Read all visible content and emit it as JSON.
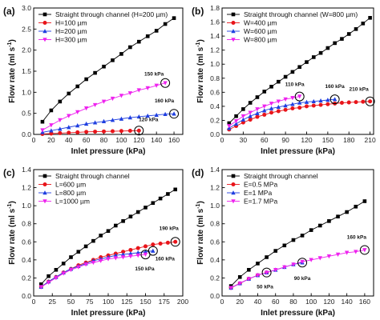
{
  "chart_data": [
    {
      "type": "line",
      "panel_label": "(a)",
      "xlabel": "Inlet pressure (kPa)",
      "ylabel": "Flow rate (ml s",
      "ylabel_sup": "-1",
      "ylabel_end": ")",
      "xlim": [
        0,
        170
      ],
      "ylim": [
        0,
        3.0
      ],
      "xticks": [
        0,
        20,
        40,
        60,
        80,
        100,
        120,
        140,
        160
      ],
      "yticks": [
        0.0,
        0.5,
        1.0,
        1.5,
        2.0,
        2.5,
        3.0
      ],
      "ytick_decimals": 1,
      "legend_position": "top-left",
      "series": [
        {
          "name": "Straight through channel (H=200 µm)",
          "color": "#000000",
          "marker": "square",
          "x": [
            10,
            20,
            30,
            40,
            50,
            60,
            70,
            80,
            90,
            100,
            110,
            120,
            130,
            140,
            150,
            160
          ],
          "y": [
            0.3,
            0.57,
            0.78,
            0.97,
            1.14,
            1.31,
            1.46,
            1.61,
            1.76,
            1.91,
            2.07,
            2.2,
            2.33,
            2.46,
            2.62,
            2.76
          ]
        },
        {
          "name": "H=100 µm",
          "color": "#e8141a",
          "marker": "circle",
          "x": [
            10,
            20,
            30,
            40,
            50,
            60,
            70,
            80,
            90,
            100,
            110,
            120
          ],
          "y": [
            0.01,
            0.02,
            0.03,
            0.04,
            0.05,
            0.06,
            0.065,
            0.07,
            0.075,
            0.08,
            0.085,
            0.09
          ]
        },
        {
          "name": "H=200 µm",
          "color": "#1f3fe0",
          "marker": "triangle-up",
          "x": [
            10,
            20,
            30,
            40,
            50,
            60,
            70,
            80,
            90,
            100,
            110,
            120,
            130,
            140,
            150,
            160
          ],
          "y": [
            0.05,
            0.09,
            0.13,
            0.17,
            0.21,
            0.25,
            0.28,
            0.31,
            0.34,
            0.37,
            0.4,
            0.42,
            0.44,
            0.46,
            0.48,
            0.49
          ]
        },
        {
          "name": "H=300 µm",
          "color": "#ee22ee",
          "marker": "triangle-down",
          "x": [
            10,
            20,
            30,
            40,
            50,
            60,
            70,
            80,
            90,
            100,
            110,
            120,
            130,
            140,
            150
          ],
          "y": [
            0.1,
            0.22,
            0.34,
            0.44,
            0.53,
            0.62,
            0.7,
            0.78,
            0.85,
            0.92,
            0.98,
            1.05,
            1.1,
            1.16,
            1.22
          ]
        }
      ],
      "annotations": [
        {
          "text": "150 kPa",
          "x": 150,
          "y": 1.22,
          "dx": -14,
          "dy": -9
        },
        {
          "text": "160 kPa",
          "x": 160,
          "y": 0.49,
          "dx": -12,
          "dy": -14
        },
        {
          "text": "120 kPa",
          "x": 120,
          "y": 0.09,
          "dx": 12,
          "dy": -12
        }
      ]
    },
    {
      "type": "line",
      "panel_label": "(b)",
      "xlabel": "Inlet pressure (kPa)",
      "ylabel": "Flow rate (ml s",
      "ylabel_sup": "-1",
      "ylabel_end": ")",
      "xlim": [
        0,
        215
      ],
      "ylim": [
        0,
        1.8
      ],
      "xticks": [
        0,
        30,
        60,
        90,
        120,
        150,
        180,
        210
      ],
      "yticks": [
        0.0,
        0.2,
        0.4,
        0.6,
        0.8,
        1.0,
        1.2,
        1.4,
        1.6,
        1.8
      ],
      "ytick_decimals": 1,
      "legend_position": "top-left",
      "series": [
        {
          "name": "Straight through channel (W=800 µm)",
          "color": "#000000",
          "marker": "square",
          "x": [
            10,
            20,
            30,
            40,
            50,
            60,
            70,
            80,
            90,
            100,
            110,
            120,
            130,
            140,
            150,
            160,
            170,
            180,
            190,
            200,
            210
          ],
          "y": [
            0.16,
            0.26,
            0.36,
            0.45,
            0.53,
            0.61,
            0.68,
            0.75,
            0.82,
            0.89,
            0.96,
            1.03,
            1.1,
            1.16,
            1.23,
            1.3,
            1.36,
            1.43,
            1.5,
            1.58,
            1.66
          ]
        },
        {
          "name": "W=400 µm",
          "color": "#e8141a",
          "marker": "circle",
          "x": [
            10,
            20,
            30,
            40,
            50,
            60,
            70,
            80,
            90,
            100,
            110,
            120,
            130,
            140,
            150,
            160,
            170,
            180,
            190,
            200,
            210
          ],
          "y": [
            0.07,
            0.12,
            0.17,
            0.21,
            0.25,
            0.28,
            0.31,
            0.33,
            0.35,
            0.37,
            0.38,
            0.4,
            0.41,
            0.42,
            0.43,
            0.44,
            0.45,
            0.455,
            0.46,
            0.465,
            0.47
          ]
        },
        {
          "name": "W=600 µm",
          "color": "#1f3fe0",
          "marker": "triangle-up",
          "x": [
            10,
            20,
            30,
            40,
            50,
            60,
            70,
            80,
            90,
            100,
            110,
            120,
            130,
            140,
            150,
            160
          ],
          "y": [
            0.09,
            0.15,
            0.21,
            0.26,
            0.3,
            0.34,
            0.37,
            0.39,
            0.41,
            0.43,
            0.45,
            0.46,
            0.47,
            0.48,
            0.49,
            0.5
          ]
        },
        {
          "name": "W=800 µm",
          "color": "#ee22ee",
          "marker": "triangle-down",
          "x": [
            10,
            20,
            30,
            40,
            50,
            60,
            70,
            80,
            90,
            100,
            110
          ],
          "y": [
            0.12,
            0.19,
            0.26,
            0.31,
            0.36,
            0.4,
            0.44,
            0.47,
            0.5,
            0.52,
            0.54
          ]
        }
      ],
      "annotations": [
        {
          "text": "110 kPa",
          "x": 110,
          "y": 0.54,
          "dx": -6,
          "dy": -13
        },
        {
          "text": "160 kPa",
          "x": 160,
          "y": 0.5,
          "dx": 0,
          "dy": -14
        },
        {
          "text": "210 kPa",
          "x": 210,
          "y": 0.47,
          "dx": -14,
          "dy": -13
        }
      ]
    },
    {
      "type": "line",
      "panel_label": "(c)",
      "xlabel": "Inlet pressure (kPa)",
      "ylabel": "Flow rate (ml s",
      "ylabel_sup": "-1",
      "ylabel_end": ")",
      "xlim": [
        0,
        200
      ],
      "ylim": [
        0,
        1.4
      ],
      "xticks": [
        0,
        25,
        50,
        75,
        100,
        125,
        150,
        175,
        200
      ],
      "yticks": [
        0.0,
        0.2,
        0.4,
        0.6,
        0.8,
        1.0,
        1.2,
        1.4
      ],
      "ytick_decimals": 1,
      "legend_position": "top-left",
      "series": [
        {
          "name": "Straight through channel",
          "color": "#000000",
          "marker": "square",
          "x": [
            10,
            20,
            30,
            40,
            50,
            60,
            70,
            80,
            90,
            100,
            110,
            120,
            130,
            140,
            150,
            160,
            170,
            180,
            190
          ],
          "y": [
            0.13,
            0.22,
            0.29,
            0.36,
            0.43,
            0.49,
            0.55,
            0.61,
            0.67,
            0.72,
            0.78,
            0.83,
            0.88,
            0.93,
            0.98,
            1.03,
            1.08,
            1.13,
            1.18
          ]
        },
        {
          "name": "L=600 µm",
          "color": "#e8141a",
          "marker": "circle",
          "x": [
            10,
            20,
            30,
            40,
            50,
            60,
            70,
            80,
            90,
            100,
            110,
            120,
            130,
            140,
            150,
            160,
            170,
            180,
            190
          ],
          "y": [
            0.1,
            0.16,
            0.21,
            0.26,
            0.3,
            0.34,
            0.37,
            0.4,
            0.43,
            0.45,
            0.47,
            0.49,
            0.51,
            0.53,
            0.55,
            0.57,
            0.58,
            0.59,
            0.6
          ]
        },
        {
          "name": "L=800 µm",
          "color": "#1f3fe0",
          "marker": "triangle-up",
          "x": [
            10,
            20,
            30,
            40,
            50,
            60,
            70,
            80,
            90,
            100,
            110,
            120,
            130,
            140,
            150,
            160
          ],
          "y": [
            0.1,
            0.16,
            0.21,
            0.26,
            0.3,
            0.33,
            0.36,
            0.39,
            0.41,
            0.43,
            0.45,
            0.46,
            0.47,
            0.48,
            0.49,
            0.5
          ]
        },
        {
          "name": "L=1000 µm",
          "color": "#ee22ee",
          "marker": "triangle-down",
          "x": [
            10,
            20,
            30,
            40,
            50,
            60,
            70,
            80,
            90,
            100,
            110,
            120,
            130,
            140,
            150
          ],
          "y": [
            0.1,
            0.15,
            0.2,
            0.25,
            0.29,
            0.32,
            0.35,
            0.37,
            0.39,
            0.41,
            0.42,
            0.43,
            0.44,
            0.45,
            0.46
          ]
        }
      ],
      "annotations": [
        {
          "text": "190 kPa",
          "x": 190,
          "y": 0.6,
          "dx": -8,
          "dy": -15
        },
        {
          "text": "160 kPa",
          "x": 160,
          "y": 0.5,
          "dx": 15,
          "dy": 12
        },
        {
          "text": "150 kPa",
          "x": 150,
          "y": 0.46,
          "dx": -1,
          "dy": 20
        }
      ]
    },
    {
      "type": "line",
      "panel_label": "(d)",
      "xlabel": "Inlet pressure (kPa)",
      "ylabel": "Flow rate (ml s",
      "ylabel_sup": "-1",
      "ylabel_end": ")",
      "xlim": [
        0,
        170
      ],
      "ylim": [
        0,
        1.4
      ],
      "xticks": [
        0,
        20,
        40,
        60,
        80,
        100,
        120,
        140,
        160
      ],
      "yticks": [
        0.0,
        0.2,
        0.4,
        0.6,
        0.8,
        1.0,
        1.2,
        1.4
      ],
      "ytick_decimals": 1,
      "legend_position": "top-left",
      "series": [
        {
          "name": "Straight through channel",
          "color": "#000000",
          "marker": "square",
          "x": [
            10,
            20,
            30,
            40,
            50,
            60,
            70,
            80,
            90,
            100,
            110,
            120,
            130,
            140,
            150,
            160
          ],
          "y": [
            0.11,
            0.21,
            0.29,
            0.36,
            0.43,
            0.5,
            0.56,
            0.62,
            0.67,
            0.73,
            0.78,
            0.83,
            0.88,
            0.93,
            0.99,
            1.05
          ]
        },
        {
          "name": "E=0.5 MPa",
          "color": "#e8141a",
          "marker": "circle",
          "x": [
            10,
            20,
            30,
            40,
            50
          ],
          "y": [
            0.09,
            0.14,
            0.19,
            0.23,
            0.26
          ]
        },
        {
          "name": "E=1 MPa",
          "color": "#1f3fe0",
          "marker": "triangle-up",
          "x": [
            10,
            20,
            30,
            40,
            50,
            60,
            70,
            80,
            90
          ],
          "y": [
            0.09,
            0.14,
            0.19,
            0.23,
            0.26,
            0.29,
            0.32,
            0.35,
            0.37
          ]
        },
        {
          "name": "E=1.7 MPa",
          "color": "#ee22ee",
          "marker": "triangle-down",
          "x": [
            10,
            20,
            30,
            40,
            50,
            60,
            70,
            80,
            90,
            100,
            110,
            120,
            130,
            140,
            150,
            160
          ],
          "y": [
            0.09,
            0.14,
            0.19,
            0.23,
            0.26,
            0.29,
            0.32,
            0.35,
            0.38,
            0.4,
            0.42,
            0.44,
            0.46,
            0.48,
            0.49,
            0.51
          ]
        }
      ],
      "annotations": [
        {
          "text": "50 kPa",
          "x": 50,
          "y": 0.26,
          "dx": -2,
          "dy": 20
        },
        {
          "text": "90 kPa",
          "x": 90,
          "y": 0.37,
          "dx": 0,
          "dy": 22
        },
        {
          "text": "160 kPa",
          "x": 160,
          "y": 0.51,
          "dx": -10,
          "dy": -14
        }
      ]
    }
  ]
}
